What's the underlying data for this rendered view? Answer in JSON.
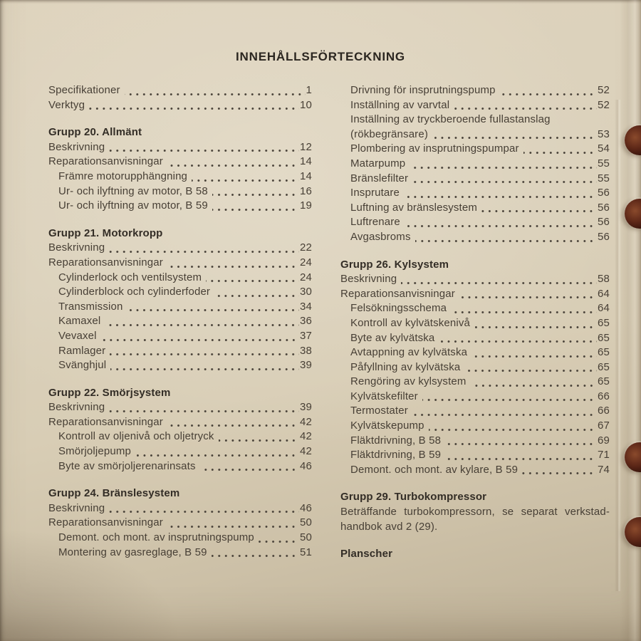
{
  "colors": {
    "paper": "#d8cdb5",
    "ink": "#473f35",
    "heading_ink": "#332d26",
    "binder_hole": "#5e2818"
  },
  "page": {
    "title": "INNEHÅLLSFÖRTECKNING",
    "binder_holes_count": 4,
    "columns": {
      "left": {
        "items": [
          {
            "type": "entry",
            "label": "Specifikationer",
            "page": "1"
          },
          {
            "type": "entry",
            "label": "Verktyg",
            "page": "10"
          },
          {
            "type": "heading",
            "label": "Grupp 20. Allmänt"
          },
          {
            "type": "entry",
            "label": "Beskrivning",
            "page": "12"
          },
          {
            "type": "entry",
            "label": "Reparationsanvisningar",
            "page": "14"
          },
          {
            "type": "entry",
            "indent": true,
            "label": "Främre motorupphängning",
            "page": "14"
          },
          {
            "type": "entry",
            "indent": true,
            "label": "Ur- och ilyftning av motor, B 58",
            "page": "16"
          },
          {
            "type": "entry",
            "indent": true,
            "label": "Ur- och ilyftning av motor, B 59",
            "page": "19"
          },
          {
            "type": "heading",
            "label": "Grupp 21. Motorkropp"
          },
          {
            "type": "entry",
            "label": "Beskrivning",
            "page": "22"
          },
          {
            "type": "entry",
            "label": "Reparationsanvisningar",
            "page": "24"
          },
          {
            "type": "entry",
            "indent": true,
            "label": "Cylinderlock och ventilsystem",
            "page": "24"
          },
          {
            "type": "entry",
            "indent": true,
            "label": "Cylinderblock och cylinderfoder",
            "page": "30"
          },
          {
            "type": "entry",
            "indent": true,
            "label": "Transmission",
            "page": "34"
          },
          {
            "type": "entry",
            "indent": true,
            "label": "Kamaxel",
            "page": "36"
          },
          {
            "type": "entry",
            "indent": true,
            "label": "Vevaxel",
            "page": "37"
          },
          {
            "type": "entry",
            "indent": true,
            "label": "Ramlager",
            "page": "38"
          },
          {
            "type": "entry",
            "indent": true,
            "label": "Svänghjul",
            "page": "39"
          },
          {
            "type": "heading",
            "label": "Grupp 22. Smörjsystem"
          },
          {
            "type": "entry",
            "label": "Beskrivning",
            "page": "39"
          },
          {
            "type": "entry",
            "label": "Reparationsanvisningar",
            "page": "42"
          },
          {
            "type": "entry",
            "indent": true,
            "label": "Kontroll av oljenivå och oljetryck",
            "page": "42"
          },
          {
            "type": "entry",
            "indent": true,
            "label": "Smörjoljepump",
            "page": "42"
          },
          {
            "type": "entry",
            "indent": true,
            "label": "Byte av smörjoljerenarinsats",
            "page": "46"
          },
          {
            "type": "heading",
            "label": "Grupp 24. Bränslesystem"
          },
          {
            "type": "entry",
            "label": "Beskrivning",
            "page": "46"
          },
          {
            "type": "entry",
            "label": "Reparationsanvisningar",
            "page": "50"
          },
          {
            "type": "entry",
            "indent": true,
            "label": "Demont. och mont. av insprutningspump",
            "page": "50"
          },
          {
            "type": "entry",
            "indent": true,
            "label": "Montering av gasreglage, B 59",
            "page": "51"
          }
        ]
      },
      "right": {
        "items": [
          {
            "type": "entry",
            "indent": true,
            "label": "Drivning för insprutningspump",
            "page": "52"
          },
          {
            "type": "entry",
            "indent": true,
            "label": "Inställning av varvtal",
            "page": "52"
          },
          {
            "type": "entry",
            "indent": true,
            "label": "Inställning av tryckberoende fullastanslag",
            "page": ""
          },
          {
            "type": "entry",
            "indent": true,
            "label": "(rökbegränsare)",
            "page": "53"
          },
          {
            "type": "entry",
            "indent": true,
            "label": "Plombering av insprutningspumpar",
            "page": "54"
          },
          {
            "type": "entry",
            "indent": true,
            "label": "Matarpump",
            "page": "55"
          },
          {
            "type": "entry",
            "indent": true,
            "label": "Bränslefilter",
            "page": "55"
          },
          {
            "type": "entry",
            "indent": true,
            "label": "Insprutare",
            "page": "56"
          },
          {
            "type": "entry",
            "indent": true,
            "label": "Luftning av bränslesystem",
            "page": "56"
          },
          {
            "type": "entry",
            "indent": true,
            "label": "Luftrenare",
            "page": "56"
          },
          {
            "type": "entry",
            "indent": true,
            "label": "Avgasbroms",
            "page": "56"
          },
          {
            "type": "heading",
            "label": "Grupp 26. Kylsystem"
          },
          {
            "type": "entry",
            "label": "Beskrivning",
            "page": "58"
          },
          {
            "type": "entry",
            "label": "Reparationsanvisningar",
            "page": "64"
          },
          {
            "type": "entry",
            "indent": true,
            "label": "Felsökningsschema",
            "page": "64"
          },
          {
            "type": "entry",
            "indent": true,
            "label": "Kontroll av kylvätskenivå",
            "page": "65"
          },
          {
            "type": "entry",
            "indent": true,
            "label": "Byte av kylvätska",
            "page": "65"
          },
          {
            "type": "entry",
            "indent": true,
            "label": "Avtappning av kylvätska",
            "page": "65"
          },
          {
            "type": "entry",
            "indent": true,
            "label": "Påfyllning av kylvätska",
            "page": "65"
          },
          {
            "type": "entry",
            "indent": true,
            "label": "Rengöring av kylsystem",
            "page": "65"
          },
          {
            "type": "entry",
            "indent": true,
            "label": "Kylvätskefilter",
            "page": "66"
          },
          {
            "type": "entry",
            "indent": true,
            "label": "Termostater",
            "page": "66"
          },
          {
            "type": "entry",
            "indent": true,
            "label": "Kylvätskepump",
            "page": "67"
          },
          {
            "type": "entry",
            "indent": true,
            "label": "Fläktdrivning, B 58",
            "page": "69"
          },
          {
            "type": "entry",
            "indent": true,
            "label": "Fläktdrivning, B 59",
            "page": "71"
          },
          {
            "type": "entry",
            "indent": true,
            "label": "Demont. och mont. av kylare, B 59",
            "page": "74"
          },
          {
            "type": "heading",
            "label": "Grupp 29. Turbokompressor"
          },
          {
            "type": "text",
            "justify": true,
            "label": "Beträffande turbokompressorn, se separat verkstad-"
          },
          {
            "type": "text",
            "label": "handbok avd 2 (29)."
          },
          {
            "type": "heading",
            "label": "Planscher"
          }
        ]
      }
    }
  }
}
